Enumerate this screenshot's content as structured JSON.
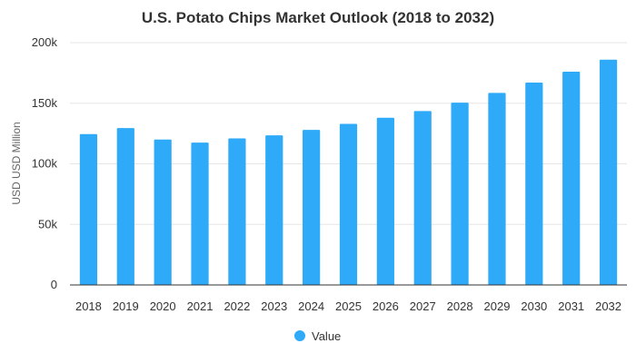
{
  "chart_data": {
    "type": "bar",
    "title": "U.S. Potato Chips Market Outlook (2018 to 2032)",
    "xlabel": "",
    "ylabel": "USD USD Million",
    "categories": [
      "2018",
      "2019",
      "2020",
      "2021",
      "2022",
      "2023",
      "2024",
      "2025",
      "2026",
      "2027",
      "2028",
      "2029",
      "2030",
      "2031",
      "2032"
    ],
    "series": [
      {
        "name": "Value",
        "color": "#2eaaf8",
        "values": [
          124500,
          129500,
          120000,
          117500,
          121000,
          123500,
          128000,
          133000,
          138000,
          143500,
          150500,
          158500,
          167000,
          176000,
          186000
        ]
      }
    ],
    "ylim": [
      0,
      200000
    ],
    "yticks": [
      0,
      50000,
      100000,
      150000,
      200000
    ],
    "ytick_labels": [
      "0",
      "50k",
      "100k",
      "150k",
      "200k"
    ],
    "grid": true,
    "legend_position": "bottom-center"
  }
}
